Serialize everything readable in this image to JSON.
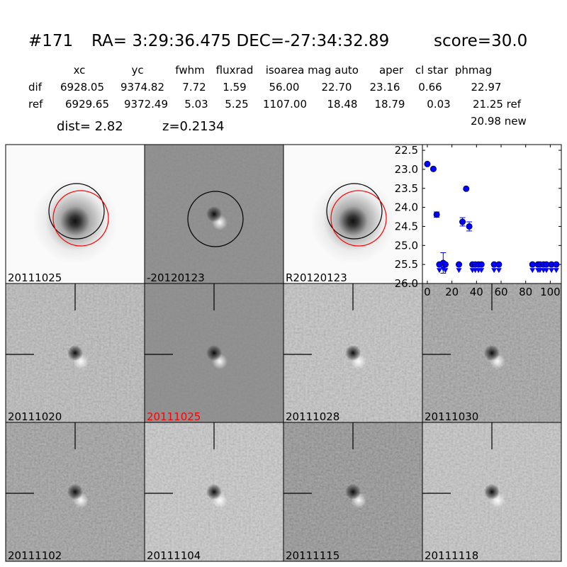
{
  "title": {
    "id": "#171",
    "coords": "RA= 3:29:36.475 DEC=-27:34:32.89",
    "score": "score=30.0"
  },
  "table": {
    "headers": [
      "xc",
      "yc",
      "fwhm",
      "fluxrad",
      "isoarea",
      "mag auto",
      "aper",
      "cl star",
      "phmag"
    ],
    "rows": [
      {
        "label": "dif",
        "values": [
          "6928.05",
          "9374.82",
          "7.72",
          "1.59",
          "56.00",
          "22.70",
          "23.16",
          "0.66",
          "22.97"
        ]
      },
      {
        "label": "ref",
        "values": [
          "6929.65",
          "9372.49",
          "5.03",
          "5.25",
          "1107.00",
          "18.48",
          "18.79",
          "0.03",
          "21.25 ref"
        ]
      }
    ],
    "extra": "20.98 new",
    "dist": "dist=  2.82",
    "z": "z=0.2134"
  },
  "stamps": [
    {
      "label": "20111025",
      "kind": "ref",
      "label_color": "#000000"
    },
    {
      "label": "-20120123",
      "kind": "diff",
      "label_color": "#000000"
    },
    {
      "label": "R20120123",
      "kind": "ref",
      "label_color": "#000000"
    },
    {
      "label": "20111020",
      "kind": "noise",
      "label_color": "#000000"
    },
    {
      "label": "20111025",
      "kind": "diff-clean",
      "label_color": "#ff0000"
    },
    {
      "label": "20111028",
      "kind": "noise",
      "label_color": "#000000"
    },
    {
      "label": "20111030",
      "kind": "noise",
      "label_color": "#000000"
    },
    {
      "label": "20111102",
      "kind": "noise",
      "label_color": "#000000"
    },
    {
      "label": "20111104",
      "kind": "noise",
      "label_color": "#000000"
    },
    {
      "label": "20111115",
      "kind": "noise",
      "label_color": "#000000"
    },
    {
      "label": "20111118",
      "kind": "noise",
      "label_color": "#000000"
    }
  ],
  "chart_data": {
    "type": "scatter",
    "xlim": [
      -4,
      109
    ],
    "ylim": [
      26.0,
      22.35
    ],
    "y_inverted": true,
    "xticks": [
      "0",
      "20",
      "40",
      "60",
      "80",
      "100"
    ],
    "yticks": [
      "22.5",
      "23.0",
      "23.5",
      "24.0",
      "24.5",
      "25.0",
      "25.5",
      "26.0"
    ],
    "color": "#0000ff",
    "points": [
      {
        "x": 0,
        "y": 22.86
      },
      {
        "x": 4.9,
        "y": 22.99
      },
      {
        "x": 7.6,
        "y": 24.19,
        "err": 0.07
      },
      {
        "x": 9.8,
        "y": 25.5,
        "limit": true
      },
      {
        "x": 12.9,
        "y": 25.46,
        "err": 0.27,
        "limit": true
      },
      {
        "x": 14.7,
        "y": 25.5,
        "limit": true
      },
      {
        "x": 25.7,
        "y": 25.5,
        "limit": true
      },
      {
        "x": 28.6,
        "y": 24.38,
        "err": 0.11
      },
      {
        "x": 31.6,
        "y": 23.51
      },
      {
        "x": 34.1,
        "y": 24.5,
        "err": 0.12
      },
      {
        "x": 36.7,
        "y": 25.5,
        "limit": true
      },
      {
        "x": 39.0,
        "y": 25.5,
        "limit": true
      },
      {
        "x": 41.6,
        "y": 25.5,
        "limit": true
      },
      {
        "x": 44.0,
        "y": 25.5,
        "limit": true
      },
      {
        "x": 54.3,
        "y": 25.5,
        "limit": true
      },
      {
        "x": 58.2,
        "y": 25.5,
        "limit": true
      },
      {
        "x": 85.5,
        "y": 25.5,
        "limit": true
      },
      {
        "x": 90.0,
        "y": 25.5,
        "limit": true
      },
      {
        "x": 91.6,
        "y": 25.5,
        "limit": true
      },
      {
        "x": 94.5,
        "y": 25.5,
        "limit": true
      },
      {
        "x": 96.9,
        "y": 25.5,
        "limit": true
      },
      {
        "x": 101.0,
        "y": 25.5,
        "limit": true
      },
      {
        "x": 104.9,
        "y": 25.5,
        "limit": true
      }
    ]
  }
}
